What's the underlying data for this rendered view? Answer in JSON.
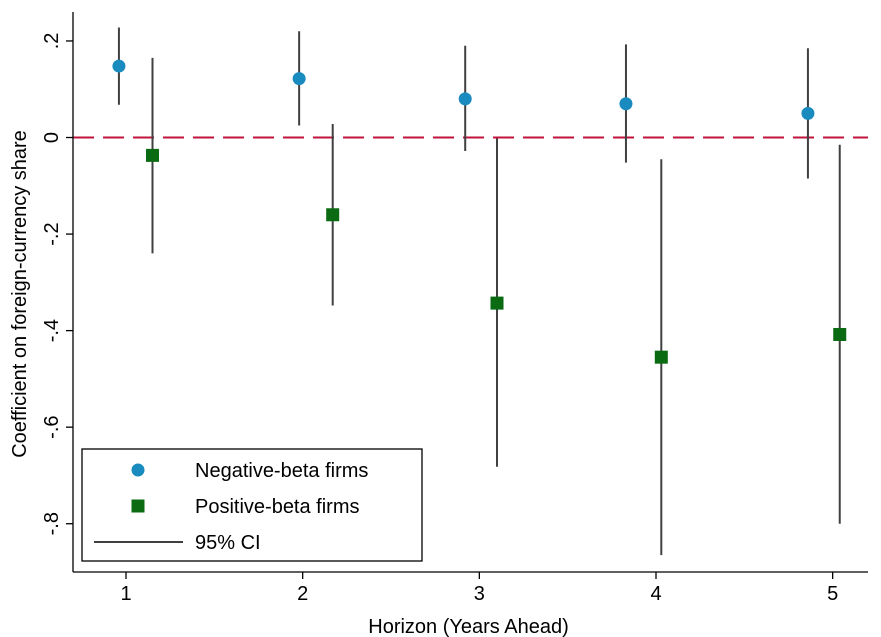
{
  "chart_data": {
    "type": "scatter",
    "title": "",
    "xlabel": "Horizon (Years Ahead)",
    "ylabel": "Coefficient on foreign-currency share",
    "x_ticks": [
      1,
      2,
      3,
      4,
      5
    ],
    "y_ticks": [
      {
        "value": 0.2,
        "label": ".2"
      },
      {
        "value": 0,
        "label": "0"
      },
      {
        "value": -0.2,
        "label": "-.2"
      },
      {
        "value": -0.4,
        "label": "-.4"
      },
      {
        "value": -0.6,
        "label": "-.6"
      },
      {
        "value": -0.8,
        "label": "-.8"
      }
    ],
    "xlim": [
      0.7,
      5.2
    ],
    "ylim": [
      -0.9,
      0.26
    ],
    "grid": false,
    "reference_line": {
      "y": 0,
      "style": "dashed",
      "color": "#c0143c"
    },
    "series": [
      {
        "name": "Negative-beta firms",
        "marker": "circle",
        "color": "#1a8bbf",
        "points": [
          {
            "x": 0.96,
            "y": 0.148,
            "ci_low": 0.068,
            "ci_high": 0.228
          },
          {
            "x": 1.98,
            "y": 0.122,
            "ci_low": 0.025,
            "ci_high": 0.22
          },
          {
            "x": 2.92,
            "y": 0.08,
            "ci_low": -0.028,
            "ci_high": 0.19
          },
          {
            "x": 3.83,
            "y": 0.07,
            "ci_low": -0.052,
            "ci_high": 0.193
          },
          {
            "x": 4.86,
            "y": 0.05,
            "ci_low": -0.085,
            "ci_high": 0.185
          }
        ]
      },
      {
        "name": "Positive-beta firms",
        "marker": "square",
        "color": "#0a6b12",
        "points": [
          {
            "x": 1.15,
            "y": -0.037,
            "ci_low": -0.24,
            "ci_high": 0.165
          },
          {
            "x": 2.17,
            "y": -0.16,
            "ci_low": -0.348,
            "ci_high": 0.028
          },
          {
            "x": 3.1,
            "y": -0.343,
            "ci_low": -0.682,
            "ci_high": -0.002
          },
          {
            "x": 4.03,
            "y": -0.455,
            "ci_low": -0.865,
            "ci_high": -0.045
          },
          {
            "x": 5.04,
            "y": -0.408,
            "ci_low": -0.8,
            "ci_high": -0.015
          }
        ]
      }
    ],
    "legend": {
      "position": "bottom-left",
      "items": [
        {
          "label": "Negative-beta firms",
          "symbol": "circle",
          "color": "#1a8bbf"
        },
        {
          "label": "Positive-beta firms",
          "symbol": "square",
          "color": "#0a6b12"
        },
        {
          "label": "95% CI",
          "symbol": "line",
          "color": "#404040"
        }
      ]
    }
  }
}
